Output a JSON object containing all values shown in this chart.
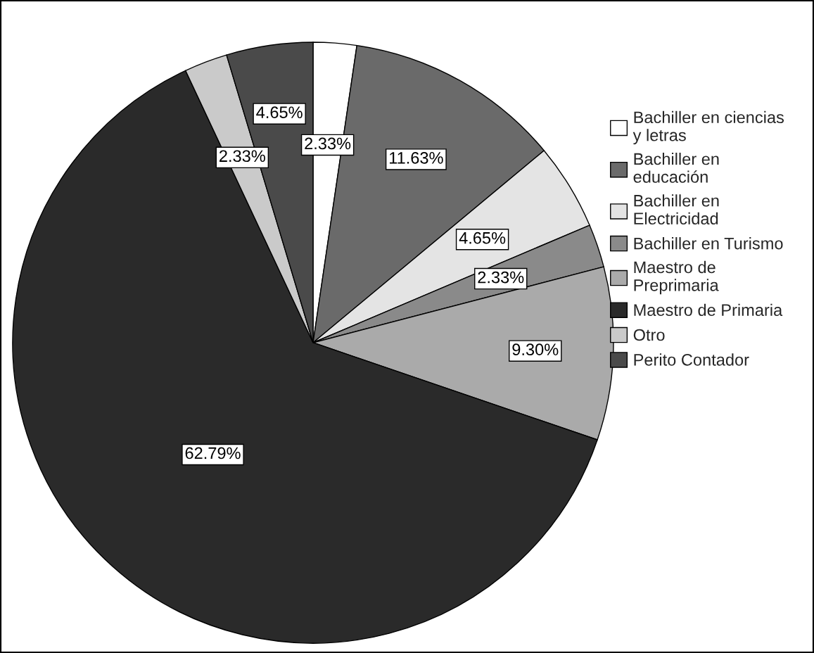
{
  "chart_data": {
    "type": "pie",
    "categories": [
      "Bachiller en ciencias y letras",
      "Bachiller en educación",
      "Bachiller en Electricidad",
      "Bachiller en Turismo",
      "Maestro de Preprimaria",
      "Maestro de Primaria",
      "Otro",
      "Perito Contador"
    ],
    "values": [
      2.33,
      11.63,
      4.65,
      2.33,
      9.3,
      62.79,
      2.33,
      4.65
    ],
    "colors": [
      "#ffffff",
      "#6a6a6a",
      "#e4e4e4",
      "#8a8a8a",
      "#aaaaaa",
      "#2a2a2a",
      "#cacaca",
      "#4a4a4a"
    ],
    "value_labels": [
      "2.33%",
      "11.63%",
      "4.65%",
      "2.33%",
      "9.30%",
      "62.79%",
      "2.33%",
      "4.65%"
    ],
    "legend": "top right"
  }
}
